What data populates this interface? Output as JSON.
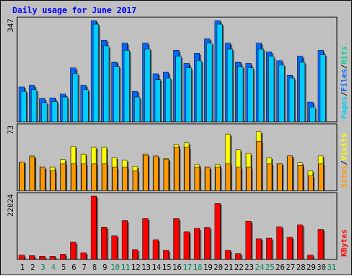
{
  "chart_data": [
    {
      "type": "bar",
      "title": "Daily usage for June 2017",
      "categories": [
        "1",
        "2",
        "3",
        "4",
        "5",
        "6",
        "7",
        "8",
        "9",
        "10",
        "11",
        "12",
        "13",
        "14",
        "15",
        "16",
        "17",
        "18",
        "19",
        "20",
        "21",
        "22",
        "23",
        "24",
        "25",
        "26",
        "27",
        "28",
        "29",
        "30",
        "31"
      ],
      "weekend_days": [
        "3",
        "4",
        "10",
        "11",
        "17",
        "18",
        "24",
        "25",
        "31"
      ],
      "ymax_label": "347",
      "ylim": [
        0,
        347
      ],
      "ylabel_parts": [
        "Pages",
        "Files",
        "Hits"
      ],
      "ylabel_sep": "/",
      "series": [
        {
          "name": "Hits",
          "values": [
            0,
            0,
            0,
            0,
            0,
            0,
            0,
            0,
            0,
            0,
            0,
            0,
            0,
            0,
            0,
            0,
            0,
            0,
            0,
            0,
            0,
            0,
            0,
            0,
            0,
            0,
            0,
            0,
            0,
            0,
            0
          ]
        },
        {
          "name": "Files",
          "values": [
            120,
            125,
            80,
            82,
            95,
            185,
            125,
            347,
            280,
            205,
            270,
            105,
            270,
            165,
            170,
            245,
            200,
            235,
            285,
            347,
            270,
            205,
            200,
            270,
            240,
            210,
            160,
            225,
            68,
            245,
            0
          ]
        },
        {
          "name": "Pages",
          "values": [
            105,
            110,
            65,
            70,
            85,
            165,
            110,
            335,
            260,
            190,
            245,
            85,
            250,
            145,
            150,
            225,
            185,
            210,
            270,
            335,
            250,
            190,
            185,
            250,
            225,
            195,
            150,
            205,
            50,
            230,
            0
          ]
        }
      ],
      "colors": {
        "Hits": "#00cc99",
        "Files": "#0066ff",
        "Pages": "#00ccff"
      }
    },
    {
      "type": "bar",
      "ymax_label": "73",
      "ylim": [
        0,
        73
      ],
      "ylabel_parts": [
        "Sites",
        "Visits"
      ],
      "ylabel_sep": "/",
      "series": [
        {
          "name": "Visits",
          "values": [
            33,
            40,
            27,
            27,
            36,
            51,
            42,
            50,
            50,
            38,
            35,
            28,
            42,
            40,
            37,
            53,
            55,
            30,
            27,
            30,
            65,
            47,
            43,
            68,
            38,
            31,
            40,
            32,
            23,
            40,
            0
          ]
        },
        {
          "name": "Sites",
          "values": [
            33,
            39,
            27,
            23,
            31,
            31,
            31,
            31,
            31,
            27,
            27,
            23,
            41,
            39,
            36,
            50,
            50,
            27,
            27,
            27,
            31,
            27,
            27,
            57,
            31,
            31,
            40,
            29,
            17,
            31,
            0
          ]
        }
      ],
      "colors": {
        "Visits": "#ffff00",
        "Sites": "#ff9900"
      }
    },
    {
      "type": "bar",
      "ymax_label": "22024",
      "ylim": [
        0,
        22024
      ],
      "ylabel_parts": [
        "KBytes"
      ],
      "series": [
        {
          "name": "KBytes",
          "values": [
            1500,
            1300,
            1100,
            1100,
            1800,
            6000,
            2300,
            22024,
            11200,
            8200,
            13500,
            3400,
            14200,
            6800,
            3200,
            14200,
            9600,
            10800,
            11100,
            19500,
            3200,
            2000,
            13300,
            7200,
            7400,
            11300,
            7700,
            12000,
            1500,
            10400,
            0
          ]
        }
      ],
      "colors": {
        "KBytes": "#ff0000"
      }
    }
  ]
}
